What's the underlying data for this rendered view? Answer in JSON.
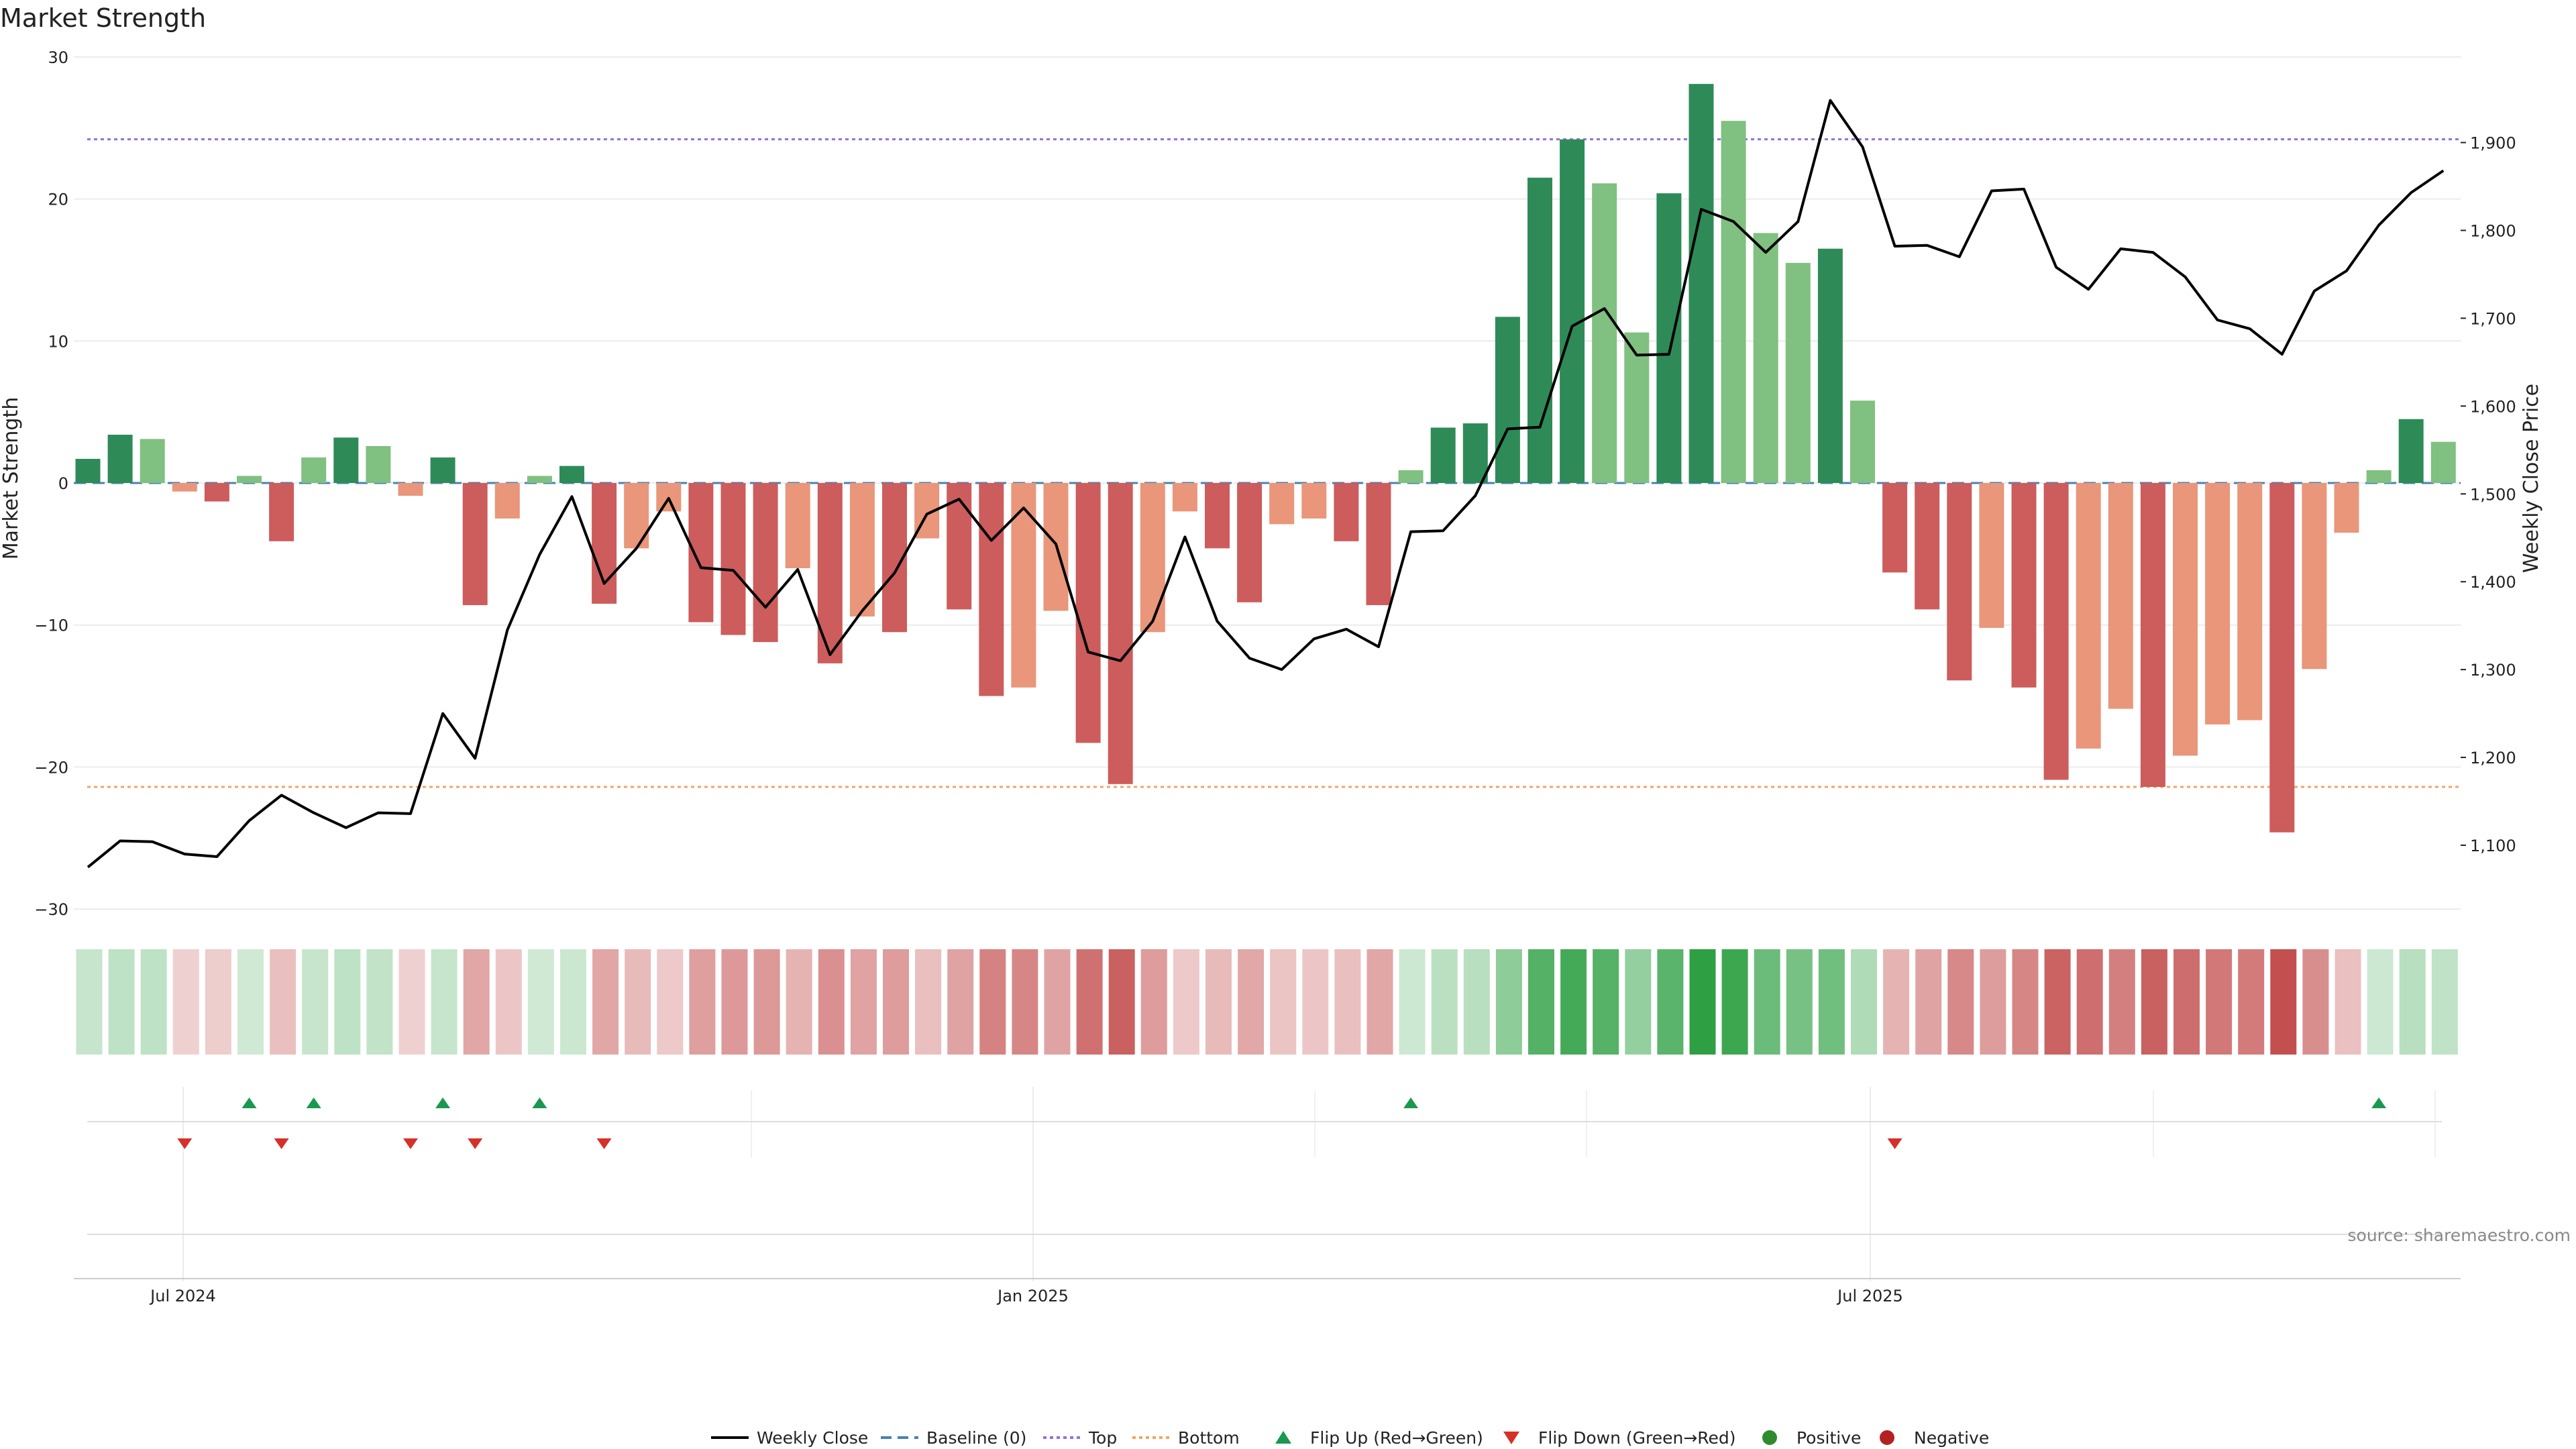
{
  "chart_data": {
    "type": "bar",
    "title": "Market Strength",
    "ylabel_left": "Market Strength",
    "ylabel_right": "Weekly Close Price",
    "ylim_left": [
      -30,
      30
    ],
    "ylim_right": [
      1050,
      1920
    ],
    "yticks_left": [
      "30",
      "20",
      "10",
      "0",
      "−10",
      "−20",
      "−30"
    ],
    "yticks_right": [
      "1,900",
      "1,800",
      "1,700",
      "1,600",
      "1,500",
      "1,400",
      "1,300",
      "1,200",
      "1,100"
    ],
    "x_ticks": [
      "Jul 2024",
      "Jan 2025",
      "Jul 2025"
    ],
    "top_level": 24.2,
    "bottom_level": -21.4,
    "strength": [
      1.7,
      3.4,
      3.1,
      -0.6,
      -1.3,
      0.5,
      -4.1,
      1.8,
      3.2,
      2.6,
      -0.9,
      1.8,
      -8.6,
      -2.5,
      0.5,
      1.2,
      -8.5,
      -4.6,
      -2.0,
      -9.8,
      -10.7,
      -11.2,
      -6.0,
      -12.7,
      -9.4,
      -10.5,
      -3.9,
      -8.9,
      -15.0,
      -14.4,
      -9.0,
      -18.3,
      -21.2,
      -10.5,
      -2.0,
      -4.6,
      -8.4,
      -2.9,
      -2.5,
      -4.1,
      -8.6,
      0.9,
      3.9,
      4.2,
      11.7,
      21.5,
      24.2,
      21.1,
      10.6,
      20.4,
      28.1,
      25.5,
      17.6,
      15.5,
      16.5,
      5.8,
      -6.3,
      -8.9,
      -13.9,
      -10.2,
      -14.4,
      -20.9,
      -18.7,
      -15.9,
      -21.4,
      -19.2,
      -17.0,
      -16.7,
      -24.6,
      -13.1,
      -3.5,
      0.9,
      4.5,
      2.9
    ],
    "weekly_close": [
      1075,
      1105,
      1104,
      1090,
      1087,
      1128,
      1157,
      1137,
      1120,
      1137,
      1136,
      1250,
      1199,
      1345,
      1431,
      1497,
      1398,
      1438,
      1495,
      1416,
      1413,
      1371,
      1414,
      1317,
      1367,
      1410,
      1477,
      1494,
      1447,
      1484,
      1443,
      1320,
      1310,
      1355,
      1451,
      1355,
      1313,
      1300,
      1335,
      1346,
      1326,
      1457,
      1458,
      1498,
      1574,
      1576,
      1691,
      1711,
      1658,
      1659,
      1824,
      1810,
      1775,
      1810,
      1948,
      1895,
      1782,
      1783,
      1770,
      1845,
      1847,
      1758,
      1733,
      1779,
      1775,
      1747,
      1698,
      1688,
      1659,
      1731,
      1754,
      1806,
      1843,
      1868
    ],
    "flip_up_weeks": [
      5,
      7,
      11,
      14,
      41,
      71
    ],
    "flip_down_weeks": [
      3,
      6,
      10,
      12,
      16,
      56
    ],
    "legend": [
      "Weekly Close",
      "Baseline (0)",
      "Top",
      "Bottom",
      "Flip Up (Red→Green)",
      "Flip Down (Green→Red)",
      "Positive",
      "Negative"
    ]
  },
  "colors": {
    "pos_strong": "#2e8b57",
    "pos_light": "#80c080",
    "neg_strong": "#cd5c5c",
    "neg_light": "#e9967a",
    "line": "#000000",
    "baseline": "#4682b4",
    "top": "#9370db",
    "bottom": "#f4a460",
    "flip_up": "#1a9850",
    "flip_down": "#d73027",
    "dot_pos": "#2e8b2e",
    "dot_neg": "#b22222"
  },
  "source": "source: sharemaestro.com"
}
